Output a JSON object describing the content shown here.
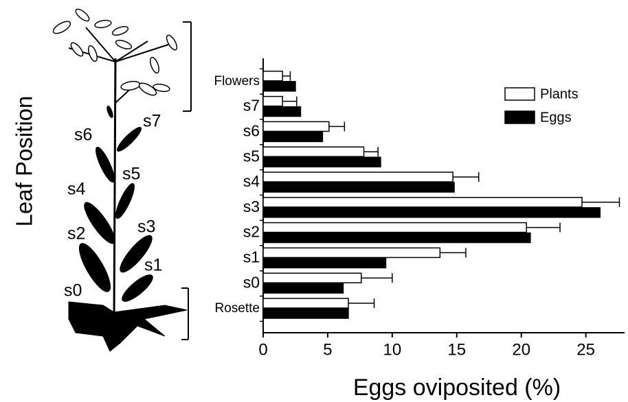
{
  "chart_data": {
    "type": "hbar",
    "xlabel": "Eggs oviposited (%)",
    "ylabel": "Leaf Position",
    "categories": [
      "Rosette",
      "s0",
      "s1",
      "s2",
      "s3",
      "s4",
      "s5",
      "s6",
      "s7",
      "Flowers"
    ],
    "series": [
      {
        "name": "Plants",
        "color": "#ffffff",
        "values": [
          6.6,
          7.6,
          13.7,
          20.4,
          24.7,
          14.7,
          7.8,
          5.1,
          1.5,
          1.5
        ],
        "errors": [
          2.0,
          2.4,
          2.0,
          2.6,
          2.9,
          2.0,
          1.1,
          1.2,
          1.1,
          0.6
        ]
      },
      {
        "name": "Eggs",
        "color": "#000000",
        "values": [
          6.6,
          6.2,
          9.5,
          20.7,
          26.1,
          14.8,
          9.1,
          4.6,
          2.9,
          2.5
        ]
      }
    ],
    "xlim": [
      0,
      28
    ],
    "xticks": [
      0,
      5,
      10,
      15,
      20,
      25
    ],
    "legend": "upper right"
  }
}
